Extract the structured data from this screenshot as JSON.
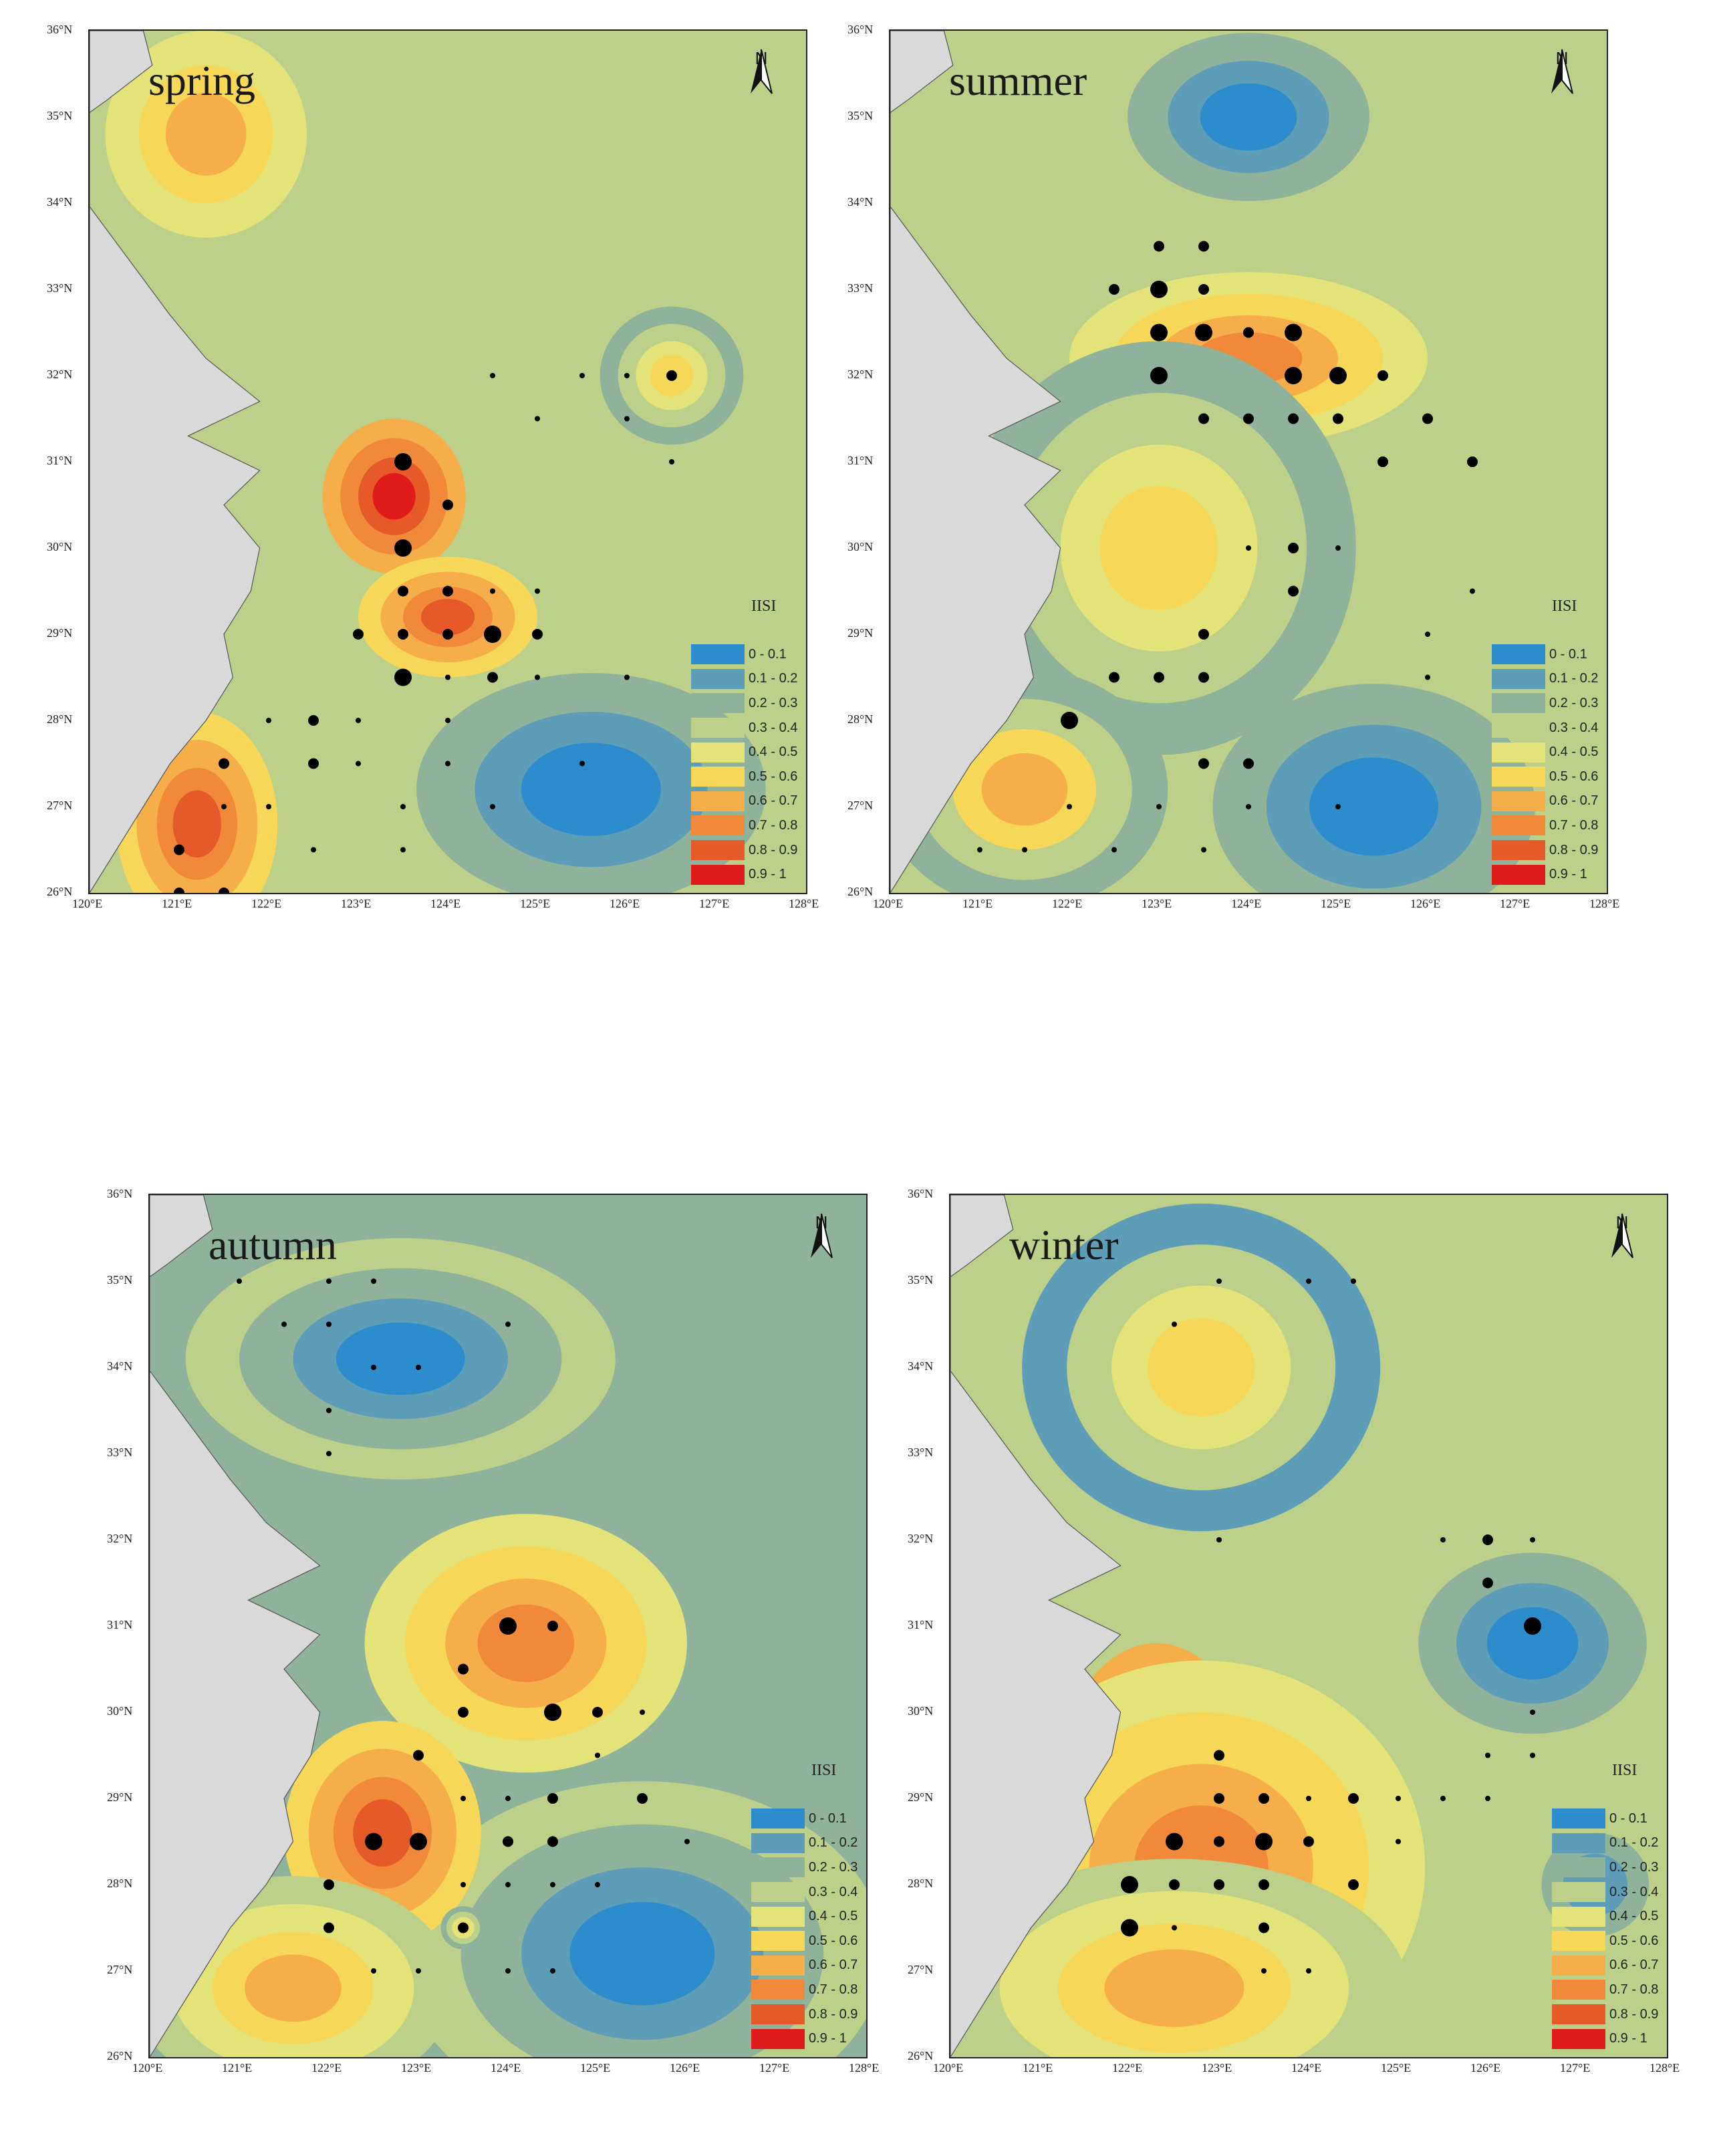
{
  "legend": {
    "title": "IISI",
    "classes": [
      {
        "label": "0 - 0.1",
        "color": "#2c8ccc"
      },
      {
        "label": "0.1 - 0.2",
        "color": "#5e9db8"
      },
      {
        "label": "0.2 - 0.3",
        "color": "#8fb29b"
      },
      {
        "label": "0.3 - 0.4",
        "color": "#bcd08a"
      },
      {
        "label": "0.4 - 0.5",
        "color": "#e3e37a"
      },
      {
        "label": "0.5 - 0.6",
        "color": "#f7d757"
      },
      {
        "label": "0.6 - 0.7",
        "color": "#f6ae4a"
      },
      {
        "label": "0.7 - 0.8",
        "color": "#f08a3a"
      },
      {
        "label": "0.8 - 0.9",
        "color": "#e65a2a"
      },
      {
        "label": "0.9 - 1",
        "color": "#e01b1b"
      }
    ]
  },
  "north_arrow": "N",
  "axes": {
    "lon_labels": [
      "120°E",
      "121°E",
      "122°E",
      "123°E",
      "124°E",
      "125°E",
      "126°E",
      "127°E",
      "128°E"
    ],
    "lat_labels": [
      "36°N",
      "35°N",
      "34°N",
      "33°N",
      "32°N",
      "31°N",
      "30°N",
      "29°N",
      "28°N",
      "27°N",
      "26°N"
    ],
    "lon_range": [
      120,
      128
    ],
    "lat_range": [
      26,
      36
    ]
  },
  "maps": [
    {
      "season": "spring",
      "background": "#bcd08a",
      "hotspots": [
        {
          "lon": 123.4,
          "lat": 30.6,
          "rx": 0.8,
          "ry": 0.9,
          "iisi": 0.95
        },
        {
          "lon": 124.0,
          "lat": 29.2,
          "rx": 1.0,
          "ry": 0.7,
          "iisi": 0.85
        },
        {
          "lon": 121.2,
          "lat": 26.8,
          "rx": 0.9,
          "ry": 1.3,
          "iisi": 0.8
        },
        {
          "lon": 121.3,
          "lat": 34.8,
          "rx": 1.5,
          "ry": 1.6,
          "iisi": 0.65
        },
        {
          "lon": 126.5,
          "lat": 32.0,
          "rx": 0.8,
          "ry": 0.8,
          "iisi": 0.55
        }
      ],
      "coldspots": [
        {
          "lon": 125.6,
          "lat": 27.2,
          "rx": 2.6,
          "ry": 1.8,
          "iisi": 0.05
        }
      ],
      "stations": [
        {
          "lon": 123.5,
          "lat": 31.0,
          "size": 3
        },
        {
          "lon": 124.0,
          "lat": 30.5,
          "size": 2
        },
        {
          "lon": 123.5,
          "lat": 30.0,
          "size": 3
        },
        {
          "lon": 123.0,
          "lat": 29.0,
          "size": 2
        },
        {
          "lon": 123.5,
          "lat": 29.0,
          "size": 2
        },
        {
          "lon": 124.0,
          "lat": 29.0,
          "size": 2
        },
        {
          "lon": 124.5,
          "lat": 29.0,
          "size": 3
        },
        {
          "lon": 125.0,
          "lat": 29.0,
          "size": 2
        },
        {
          "lon": 123.5,
          "lat": 28.5,
          "size": 3
        },
        {
          "lon": 124.0,
          "lat": 28.5,
          "size": 1
        },
        {
          "lon": 124.5,
          "lat": 28.5,
          "size": 2
        },
        {
          "lon": 123.5,
          "lat": 29.5,
          "size": 2
        },
        {
          "lon": 124.0,
          "lat": 29.5,
          "size": 2
        },
        {
          "lon": 124.5,
          "lat": 29.5,
          "size": 1
        },
        {
          "lon": 125.0,
          "lat": 29.5,
          "size": 1
        },
        {
          "lon": 126.5,
          "lat": 32.0,
          "size": 2
        },
        {
          "lon": 126.0,
          "lat": 32.0,
          "size": 1
        },
        {
          "lon": 124.5,
          "lat": 32.0,
          "size": 1
        },
        {
          "lon": 125.5,
          "lat": 32.0,
          "size": 1
        },
        {
          "lon": 125.0,
          "lat": 31.5,
          "size": 1
        },
        {
          "lon": 126.0,
          "lat": 31.5,
          "size": 1
        },
        {
          "lon": 126.5,
          "lat": 31.0,
          "size": 1
        },
        {
          "lon": 121.5,
          "lat": 27.5,
          "size": 2
        },
        {
          "lon": 122.5,
          "lat": 27.5,
          "size": 2
        },
        {
          "lon": 121.0,
          "lat": 26.5,
          "size": 2
        },
        {
          "lon": 121.0,
          "lat": 26.0,
          "size": 2
        },
        {
          "lon": 121.5,
          "lat": 26.0,
          "size": 2
        },
        {
          "lon": 122.5,
          "lat": 28.0,
          "size": 2
        },
        {
          "lon": 123.0,
          "lat": 28.0,
          "size": 1
        },
        {
          "lon": 124.0,
          "lat": 28.0,
          "size": 1
        },
        {
          "lon": 122.0,
          "lat": 28.0,
          "size": 1
        },
        {
          "lon": 121.5,
          "lat": 27.0,
          "size": 1
        },
        {
          "lon": 122.0,
          "lat": 27.0,
          "size": 1
        },
        {
          "lon": 123.0,
          "lat": 27.5,
          "size": 1
        },
        {
          "lon": 124.0,
          "lat": 27.5,
          "size": 1
        },
        {
          "lon": 125.5,
          "lat": 27.5,
          "size": 1
        },
        {
          "lon": 123.5,
          "lat": 27.0,
          "size": 1
        },
        {
          "lon": 124.5,
          "lat": 27.0,
          "size": 1
        },
        {
          "lon": 122.5,
          "lat": 26.5,
          "size": 1
        },
        {
          "lon": 123.5,
          "lat": 26.5,
          "size": 1
        },
        {
          "lon": 125.0,
          "lat": 28.5,
          "size": 1
        },
        {
          "lon": 126.0,
          "lat": 28.5,
          "size": 1
        }
      ]
    },
    {
      "season": "summer",
      "background": "#bcd08a",
      "hotspots": [
        {
          "lon": 123.4,
          "lat": 32.4,
          "rx": 1.0,
          "ry": 0.6,
          "iisi": 0.95
        },
        {
          "lon": 124.0,
          "lat": 32.2,
          "rx": 2.0,
          "ry": 1.0,
          "iisi": 0.75
        },
        {
          "lon": 123.0,
          "lat": 30.0,
          "rx": 2.2,
          "ry": 2.4,
          "iisi": 0.55
        },
        {
          "lon": 121.5,
          "lat": 27.2,
          "rx": 1.6,
          "ry": 1.4,
          "iisi": 0.6
        }
      ],
      "coldspots": [
        {
          "lon": 124.0,
          "lat": 35.0,
          "rx": 1.8,
          "ry": 1.3,
          "iisi": 0.05
        },
        {
          "lon": 125.4,
          "lat": 27.0,
          "rx": 2.4,
          "ry": 1.9,
          "iisi": 0.05
        }
      ],
      "stations": [
        {
          "lon": 123.0,
          "lat": 32.5,
          "size": 3
        },
        {
          "lon": 123.5,
          "lat": 32.5,
          "size": 3
        },
        {
          "lon": 124.0,
          "lat": 32.5,
          "size": 2
        },
        {
          "lon": 124.5,
          "lat": 32.5,
          "size": 3
        },
        {
          "lon": 123.0,
          "lat": 32.0,
          "size": 3
        },
        {
          "lon": 124.5,
          "lat": 32.0,
          "size": 3
        },
        {
          "lon": 125.0,
          "lat": 32.0,
          "size": 3
        },
        {
          "lon": 123.0,
          "lat": 33.0,
          "size": 3
        },
        {
          "lon": 123.5,
          "lat": 33.0,
          "size": 2
        },
        {
          "lon": 122.5,
          "lat": 33.0,
          "size": 2
        },
        {
          "lon": 123.0,
          "lat": 33.5,
          "size": 2
        },
        {
          "lon": 123.5,
          "lat": 33.5,
          "size": 2
        },
        {
          "lon": 125.5,
          "lat": 32.0,
          "size": 2
        },
        {
          "lon": 126.0,
          "lat": 31.5,
          "size": 2
        },
        {
          "lon": 125.5,
          "lat": 31.0,
          "size": 2
        },
        {
          "lon": 126.5,
          "lat": 31.0,
          "size": 2
        },
        {
          "lon": 124.5,
          "lat": 30.0,
          "size": 2
        },
        {
          "lon": 124.5,
          "lat": 29.5,
          "size": 2
        },
        {
          "lon": 123.5,
          "lat": 29.0,
          "size": 2
        },
        {
          "lon": 122.0,
          "lat": 28.0,
          "size": 3
        },
        {
          "lon": 122.5,
          "lat": 28.5,
          "size": 2
        },
        {
          "lon": 123.5,
          "lat": 27.5,
          "size": 2
        },
        {
          "lon": 124.0,
          "lat": 27.5,
          "size": 2
        },
        {
          "lon": 126.0,
          "lat": 28.5,
          "size": 1
        },
        {
          "lon": 123.5,
          "lat": 31.5,
          "size": 2
        },
        {
          "lon": 124.0,
          "lat": 31.5,
          "size": 2
        },
        {
          "lon": 124.5,
          "lat": 31.5,
          "size": 2
        },
        {
          "lon": 125.0,
          "lat": 31.5,
          "size": 2
        },
        {
          "lon": 123.0,
          "lat": 28.5,
          "size": 2
        },
        {
          "lon": 123.5,
          "lat": 28.5,
          "size": 2
        },
        {
          "lon": 121.0,
          "lat": 26.5,
          "size": 1
        },
        {
          "lon": 121.5,
          "lat": 26.5,
          "size": 1
        },
        {
          "lon": 122.5,
          "lat": 26.5,
          "size": 1
        },
        {
          "lon": 123.5,
          "lat": 26.5,
          "size": 1
        },
        {
          "lon": 122.0,
          "lat": 27.0,
          "size": 1
        },
        {
          "lon": 123.0,
          "lat": 27.0,
          "size": 1
        },
        {
          "lon": 124.0,
          "lat": 27.0,
          "size": 1
        },
        {
          "lon": 125.0,
          "lat": 27.0,
          "size": 1
        },
        {
          "lon": 124.0,
          "lat": 30.0,
          "size": 1
        },
        {
          "lon": 125.0,
          "lat": 30.0,
          "size": 1
        },
        {
          "lon": 126.0,
          "lat": 29.0,
          "size": 1
        },
        {
          "lon": 126.5,
          "lat": 29.5,
          "size": 1
        }
      ]
    },
    {
      "season": "autumn",
      "background": "#8fb29b",
      "hotspots": [
        {
          "lon": 124.3,
          "lat": 31.0,
          "rx": 0.8,
          "ry": 0.9,
          "iisi": 0.95
        },
        {
          "lon": 124.2,
          "lat": 30.8,
          "rx": 1.8,
          "ry": 1.5,
          "iisi": 0.75
        },
        {
          "lon": 122.6,
          "lat": 28.6,
          "rx": 1.1,
          "ry": 1.3,
          "iisi": 0.8
        },
        {
          "lon": 121.6,
          "lat": 26.8,
          "rx": 1.8,
          "ry": 1.3,
          "iisi": 0.65
        },
        {
          "lon": 123.5,
          "lat": 27.5,
          "rx": 0.25,
          "ry": 0.25,
          "iisi": 0.55
        }
      ],
      "coldspots": [
        {
          "lon": 122.8,
          "lat": 34.1,
          "rx": 2.4,
          "ry": 1.4,
          "iisi": 0.05
        },
        {
          "lon": 125.5,
          "lat": 27.2,
          "rx": 2.7,
          "ry": 2.0,
          "iisi": 0.05
        }
      ],
      "stations": [
        {
          "lon": 124.0,
          "lat": 31.0,
          "size": 3
        },
        {
          "lon": 124.5,
          "lat": 31.0,
          "size": 2
        },
        {
          "lon": 123.5,
          "lat": 30.5,
          "size": 2
        },
        {
          "lon": 123.5,
          "lat": 30.0,
          "size": 2
        },
        {
          "lon": 124.5,
          "lat": 30.0,
          "size": 3
        },
        {
          "lon": 125.0,
          "lat": 30.0,
          "size": 2
        },
        {
          "lon": 125.5,
          "lat": 30.0,
          "size": 1
        },
        {
          "lon": 123.0,
          "lat": 29.5,
          "size": 2
        },
        {
          "lon": 125.0,
          "lat": 29.5,
          "size": 1
        },
        {
          "lon": 122.5,
          "lat": 28.5,
          "size": 3
        },
        {
          "lon": 123.0,
          "lat": 28.5,
          "size": 3
        },
        {
          "lon": 124.0,
          "lat": 28.5,
          "size": 2
        },
        {
          "lon": 124.5,
          "lat": 28.5,
          "size": 2
        },
        {
          "lon": 122.0,
          "lat": 28.0,
          "size": 2
        },
        {
          "lon": 122.0,
          "lat": 27.5,
          "size": 2
        },
        {
          "lon": 123.5,
          "lat": 27.5,
          "size": 2
        },
        {
          "lon": 125.5,
          "lat": 29.0,
          "size": 2
        },
        {
          "lon": 124.5,
          "lat": 29.0,
          "size": 2
        },
        {
          "lon": 121.0,
          "lat": 35.0,
          "size": 1
        },
        {
          "lon": 122.0,
          "lat": 35.0,
          "size": 1
        },
        {
          "lon": 122.5,
          "lat": 35.0,
          "size": 1
        },
        {
          "lon": 122.0,
          "lat": 34.5,
          "size": 1
        },
        {
          "lon": 121.5,
          "lat": 34.5,
          "size": 1
        },
        {
          "lon": 124.0,
          "lat": 34.5,
          "size": 1
        },
        {
          "lon": 122.5,
          "lat": 34.0,
          "size": 1
        },
        {
          "lon": 123.0,
          "lat": 34.0,
          "size": 1
        },
        {
          "lon": 122.0,
          "lat": 33.5,
          "size": 1
        },
        {
          "lon": 122.0,
          "lat": 33.0,
          "size": 1
        },
        {
          "lon": 123.5,
          "lat": 29.0,
          "size": 1
        },
        {
          "lon": 124.0,
          "lat": 29.0,
          "size": 1
        },
        {
          "lon": 123.5,
          "lat": 28.0,
          "size": 1
        },
        {
          "lon": 124.0,
          "lat": 28.0,
          "size": 1
        },
        {
          "lon": 124.5,
          "lat": 28.0,
          "size": 1
        },
        {
          "lon": 125.0,
          "lat": 28.0,
          "size": 1
        },
        {
          "lon": 126.0,
          "lat": 28.5,
          "size": 1
        },
        {
          "lon": 122.5,
          "lat": 27.0,
          "size": 1
        },
        {
          "lon": 123.0,
          "lat": 27.0,
          "size": 1
        },
        {
          "lon": 124.0,
          "lat": 27.0,
          "size": 1
        },
        {
          "lon": 124.5,
          "lat": 27.0,
          "size": 1
        }
      ]
    },
    {
      "season": "winter",
      "background": "#bcd08a",
      "hotspots": [
        {
          "lon": 122.3,
          "lat": 28.8,
          "rx": 1.2,
          "ry": 2.0,
          "iisi": 0.95
        },
        {
          "lon": 122.8,
          "lat": 28.2,
          "rx": 2.5,
          "ry": 2.4,
          "iisi": 0.75
        },
        {
          "lon": 122.5,
          "lat": 26.8,
          "rx": 2.6,
          "ry": 1.5,
          "iisi": 0.65
        },
        {
          "lon": 122.8,
          "lat": 34.0,
          "rx": 2.0,
          "ry": 1.9,
          "iisi": 0.5
        }
      ],
      "coldspots": [
        {
          "lon": 126.5,
          "lat": 30.8,
          "rx": 1.7,
          "ry": 1.4,
          "iisi": 0.05
        },
        {
          "lon": 127.2,
          "lat": 28.0,
          "rx": 1.2,
          "ry": 1.2,
          "iisi": 0.15
        }
      ],
      "stations": [
        {
          "lon": 126.5,
          "lat": 31.0,
          "size": 3
        },
        {
          "lon": 126.0,
          "lat": 31.5,
          "size": 2
        },
        {
          "lon": 126.0,
          "lat": 32.0,
          "size": 2
        },
        {
          "lon": 123.0,
          "lat": 29.5,
          "size": 2
        },
        {
          "lon": 123.0,
          "lat": 29.0,
          "size": 2
        },
        {
          "lon": 123.5,
          "lat": 29.0,
          "size": 2
        },
        {
          "lon": 124.5,
          "lat": 29.0,
          "size": 2
        },
        {
          "lon": 125.0,
          "lat": 29.0,
          "size": 1
        },
        {
          "lon": 122.5,
          "lat": 28.5,
          "size": 3
        },
        {
          "lon": 123.0,
          "lat": 28.5,
          "size": 2
        },
        {
          "lon": 123.5,
          "lat": 28.5,
          "size": 3
        },
        {
          "lon": 124.0,
          "lat": 28.5,
          "size": 2
        },
        {
          "lon": 122.0,
          "lat": 28.0,
          "size": 3
        },
        {
          "lon": 122.5,
          "lat": 28.0,
          "size": 2
        },
        {
          "lon": 123.0,
          "lat": 28.0,
          "size": 2
        },
        {
          "lon": 123.5,
          "lat": 28.0,
          "size": 2
        },
        {
          "lon": 124.5,
          "lat": 28.0,
          "size": 2
        },
        {
          "lon": 122.0,
          "lat": 27.5,
          "size": 3
        },
        {
          "lon": 123.5,
          "lat": 27.5,
          "size": 2
        },
        {
          "lon": 122.5,
          "lat": 34.5,
          "size": 1
        },
        {
          "lon": 123.0,
          "lat": 35.0,
          "size": 1
        },
        {
          "lon": 124.0,
          "lat": 35.0,
          "size": 1
        },
        {
          "lon": 124.5,
          "lat": 35.0,
          "size": 1
        },
        {
          "lon": 123.0,
          "lat": 32.0,
          "size": 1
        },
        {
          "lon": 125.5,
          "lat": 32.0,
          "size": 1
        },
        {
          "lon": 126.5,
          "lat": 32.0,
          "size": 1
        },
        {
          "lon": 126.5,
          "lat": 30.0,
          "size": 1
        },
        {
          "lon": 126.0,
          "lat": 29.5,
          "size": 1
        },
        {
          "lon": 126.5,
          "lat": 29.5,
          "size": 1
        },
        {
          "lon": 125.5,
          "lat": 29.0,
          "size": 1
        },
        {
          "lon": 126.0,
          "lat": 29.0,
          "size": 1
        },
        {
          "lon": 124.0,
          "lat": 29.0,
          "size": 1
        },
        {
          "lon": 125.0,
          "lat": 28.5,
          "size": 1
        },
        {
          "lon": 124.0,
          "lat": 27.0,
          "size": 1
        },
        {
          "lon": 123.5,
          "lat": 27.0,
          "size": 1
        },
        {
          "lon": 122.5,
          "lat": 27.5,
          "size": 1
        }
      ]
    }
  ]
}
